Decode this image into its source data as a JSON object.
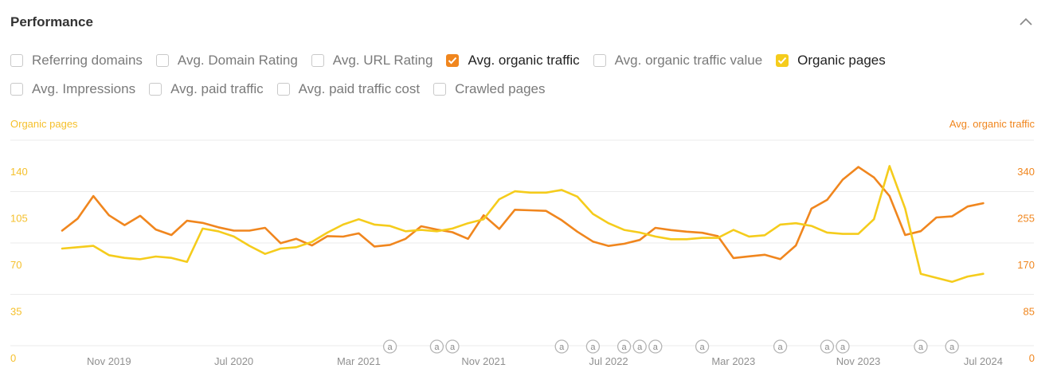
{
  "panel": {
    "title": "Performance",
    "collapse_icon": "chevron-up-icon"
  },
  "metrics_row1": [
    {
      "label": "Referring domains",
      "checked": false,
      "color": ""
    },
    {
      "label": "Avg. Domain Rating",
      "checked": false,
      "color": ""
    },
    {
      "label": "Avg. URL Rating",
      "checked": false,
      "color": ""
    },
    {
      "label": "Avg. organic traffic",
      "checked": true,
      "color": "#f0861e"
    },
    {
      "label": "Avg. organic traffic value",
      "checked": false,
      "color": ""
    },
    {
      "label": "Organic pages",
      "checked": true,
      "color": "#f5cc1c"
    }
  ],
  "metrics_row2": [
    {
      "label": "Avg. Impressions",
      "checked": false,
      "color": ""
    },
    {
      "label": "Avg. paid traffic",
      "checked": false,
      "color": ""
    },
    {
      "label": "Avg. paid traffic cost",
      "checked": false,
      "color": ""
    },
    {
      "label": "Crawled pages",
      "checked": false,
      "color": ""
    }
  ],
  "colors": {
    "organic_traffic": "#f0861e",
    "organic_pages": "#f5cc1c",
    "axis_left_text": "#f5c02c",
    "axis_right_text": "#f0861e",
    "grid": "#ebebeb",
    "x_label": "#909090",
    "annotation": "#b5b5b5"
  },
  "chart_data": {
    "type": "line",
    "left_axis_title": "Organic pages",
    "right_axis_title": "Avg. organic traffic",
    "left_ticks": [
      "0",
      "35",
      "70",
      "105",
      "140"
    ],
    "right_ticks": [
      "0",
      "85",
      "170",
      "255",
      "340"
    ],
    "left_range": [
      0,
      140
    ],
    "right_range": [
      0,
      340
    ],
    "x_labels": [
      "Nov 2019",
      "Jul 2020",
      "Mar 2021",
      "Nov 2021",
      "Jul 2022",
      "Mar 2023",
      "Nov 2023",
      "Jul 2024"
    ],
    "x_label_positions": [
      3,
      11,
      19,
      27,
      35,
      43,
      51,
      59
    ],
    "annotation_symbol": "a",
    "annotation_positions": [
      21,
      24,
      25,
      32,
      34,
      36,
      37,
      38,
      41,
      46,
      49,
      50,
      55,
      57
    ],
    "series": [
      {
        "name": "Avg. organic traffic",
        "axis": "right",
        "values": [
          210,
          232,
          273,
          238,
          220,
          237,
          212,
          202,
          228,
          224,
          216,
          210,
          210,
          215,
          187,
          195,
          183,
          200,
          199,
          205,
          181,
          184,
          195,
          218,
          212,
          207,
          195,
          238,
          213,
          248,
          247,
          246,
          229,
          208,
          190,
          182,
          186,
          193,
          215,
          211,
          208,
          206,
          200,
          160,
          163,
          166,
          158,
          183,
          250,
          266,
          303,
          326,
          307,
          273,
          202,
          209,
          234,
          236,
          254,
          260
        ]
      },
      {
        "name": "Organic pages",
        "axis": "left",
        "values": [
          73,
          74,
          75,
          68,
          66,
          65,
          67,
          66,
          63,
          88,
          86,
          82,
          75,
          69,
          73,
          74,
          78,
          85,
          91,
          95,
          91,
          90,
          86,
          87,
          86,
          88,
          92,
          95,
          110,
          116,
          115,
          115,
          117,
          112,
          99,
          92,
          87,
          85,
          82,
          80,
          80,
          81,
          81,
          87,
          82,
          83,
          91,
          92,
          90,
          85,
          84,
          84,
          95,
          135,
          103,
          54,
          51,
          48,
          52,
          54
        ]
      }
    ]
  }
}
